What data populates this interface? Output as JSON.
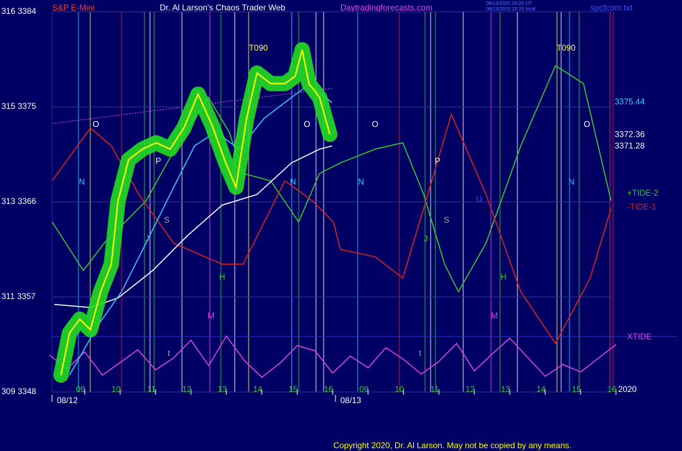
{
  "chart_data": {
    "type": "line",
    "header": {
      "symbol": "S&P E-Mini",
      "title": "Dr. Al Larson's Chaos Trader Web",
      "site": "Daytradingforecasts.com",
      "stamp1": "08/13/2020 20:20 UT",
      "stamp2": "08/13/2020 15:20 local",
      "file": "spcfcom.txt"
    },
    "copyright": "Copyright 2020, Dr. Al Larson. May not be copied by any means.",
    "year": "2020",
    "ylim": [
      3348,
      3384
    ],
    "yticks": [
      {
        "value": 3384,
        "label": "316  3384"
      },
      {
        "value": 3375,
        "label": "315  3375"
      },
      {
        "value": 3366,
        "label": "313  3366"
      },
      {
        "value": 3357,
        "label": "311  3357"
      },
      {
        "value": 3348,
        "label": "309  3348"
      }
    ],
    "xlim": [
      0,
      16
    ],
    "xticks": [
      {
        "value": 1,
        "label": "09"
      },
      {
        "value": 2,
        "label": "10"
      },
      {
        "value": 3,
        "label": "11"
      },
      {
        "value": 4,
        "label": "12"
      },
      {
        "value": 5,
        "label": "13"
      },
      {
        "value": 6,
        "label": "14"
      },
      {
        "value": 7,
        "label": "15"
      },
      {
        "value": 8,
        "label": "16"
      },
      {
        "value": 9,
        "label": "09"
      },
      {
        "value": 10,
        "label": "10"
      },
      {
        "value": 11,
        "label": "11"
      },
      {
        "value": 12,
        "label": "12"
      },
      {
        "value": 13,
        "label": "13"
      },
      {
        "value": 14,
        "label": "14"
      },
      {
        "value": 15,
        "label": "15"
      },
      {
        "value": 16,
        "label": "16"
      }
    ],
    "date_ticks": [
      {
        "value": 0,
        "label": "08/12"
      },
      {
        "value": 8,
        "label": "08/13"
      }
    ],
    "grid": true,
    "series": [
      {
        "name": "+TIDE-2",
        "color": "#33cc33",
        "x": [
          0.08,
          0.96,
          1.55,
          2.73,
          3.71,
          4.49,
          5.08,
          5.47,
          6.25,
          7.04,
          7.63,
          8.22,
          9.2,
          9.98,
          10.57,
          11.16,
          11.55,
          12.33,
          13.31,
          14.29,
          15.08,
          15.86
        ],
        "values": [
          3364.1,
          3359.5,
          3362.1,
          3366.1,
          3372.0,
          3375.9,
          3372.6,
          3368.7,
          3368.0,
          3364.1,
          3368.7,
          3369.7,
          3371.0,
          3371.6,
          3366.7,
          3360.1,
          3357.5,
          3362.1,
          3371.3,
          3378.9,
          3377.2,
          3366.1
        ]
      },
      {
        "name": "-TIDE-1",
        "color": "#dd2222",
        "x": [
          0.08,
          1.16,
          1.75,
          2.53,
          3.51,
          4.88,
          5.47,
          6.65,
          7.43,
          8.02,
          8.22,
          9.2,
          9.98,
          10.57,
          11.35,
          12.33,
          13.31,
          14.29,
          15.27,
          15.86
        ],
        "values": [
          3368.0,
          3373.0,
          3371.3,
          3366.7,
          3362.1,
          3360.1,
          3360.1,
          3368.0,
          3366.1,
          3364.1,
          3361.5,
          3360.8,
          3358.8,
          3365.4,
          3374.3,
          3366.7,
          3357.5,
          3352.6,
          3358.8,
          3365.4
        ]
      },
      {
        "name": "XTIDE",
        "color": "#dd44dd",
        "x": [
          0,
          0.5,
          1,
          1.5,
          2,
          2.5,
          3,
          3.5,
          4,
          4.5,
          5,
          5.5,
          6,
          6.5,
          7,
          7.5,
          8,
          8.5,
          9,
          9.5,
          10,
          10.5,
          11,
          11.5,
          12,
          12.5,
          13,
          13.5,
          14,
          14.5,
          15,
          15.5,
          16
        ],
        "values": [
          3351.5,
          3350.2,
          3351.8,
          3349.6,
          3350.8,
          3352.0,
          3350.1,
          3351.2,
          3352.9,
          3350.5,
          3353.3,
          3351.0,
          3349.4,
          3350.7,
          3352.4,
          3351.9,
          3349.8,
          3351.4,
          3350.3,
          3352.2,
          3351.1,
          3349.7,
          3350.9,
          3352.6,
          3350.0,
          3351.6,
          3353.1,
          3351.3,
          3349.5,
          3350.6,
          3349.9,
          3351.2,
          3352.5
        ]
      },
      {
        "color": "#ffffff",
        "last_label": 3371.28,
        "x": [
          0.14,
          1.16,
          1.94,
          2.92,
          3.9,
          4.88,
          5.86,
          6.84,
          7.63,
          7.98
        ],
        "values": [
          3356.3,
          3356.0,
          3356.9,
          3359.5,
          3362.8,
          3365.7,
          3366.7,
          3369.7,
          3371.0,
          3371.3
        ]
      },
      {
        "color": "#33ccff",
        "last_label": 3375.44,
        "x": [
          0.57,
          1.35,
          2.04,
          2.73,
          3.41,
          4.1,
          4.69,
          5.37,
          6.06,
          6.84,
          7.33,
          7.98
        ],
        "values": [
          3349.6,
          3354.2,
          3357.5,
          3362.1,
          3366.7,
          3371.3,
          3372.6,
          3371.0,
          3373.9,
          3375.9,
          3377.1,
          3375.4
        ]
      },
      {
        "color": "#ffff00",
        "band_color": "#22dd22",
        "last_label": 3372.36,
        "x": [
          0.33,
          0.57,
          0.86,
          1.16,
          1.45,
          1.75,
          1.94,
          2.24,
          2.63,
          3.02,
          3.41,
          3.8,
          4.2,
          4.59,
          4.98,
          5.27,
          5.57,
          5.86,
          6.25,
          6.65,
          6.94,
          7.14,
          7.33,
          7.63,
          7.92
        ],
        "values": [
          3349.6,
          3353.6,
          3354.9,
          3353.9,
          3357.5,
          3360.1,
          3366.1,
          3370.0,
          3371.0,
          3371.6,
          3371.0,
          3373.0,
          3376.2,
          3373.3,
          3369.7,
          3367.4,
          3373.9,
          3378.2,
          3377.2,
          3377.2,
          3377.9,
          3380.4,
          3377.2,
          3375.9,
          3372.4
        ]
      }
    ],
    "annotations": [
      {
        "text": "T090",
        "color": "#ffff66"
      },
      {
        "text": "T090",
        "color": "#ffff66"
      },
      {
        "text": "O",
        "color": "#ffffff"
      },
      {
        "text": "O",
        "color": "#ffffff"
      },
      {
        "text": "O",
        "color": "#ffffff"
      },
      {
        "text": "O",
        "color": "#ffffff"
      },
      {
        "text": "N",
        "color": "#33ccff"
      },
      {
        "text": "N",
        "color": "#33ccff"
      },
      {
        "text": "N",
        "color": "#33ccff"
      },
      {
        "text": "N",
        "color": "#33ccff"
      },
      {
        "text": "P",
        "color": "#ffffff"
      },
      {
        "text": "P",
        "color": "#ffffff"
      },
      {
        "text": "S",
        "color": "#aaaaaa"
      },
      {
        "text": "S",
        "color": "#aaaaaa"
      },
      {
        "text": "J",
        "color": "#33cc33"
      },
      {
        "text": "J",
        "color": "#33cc33"
      },
      {
        "text": "H",
        "color": "#33cc33"
      },
      {
        "text": "H",
        "color": "#33cc33"
      },
      {
        "text": "M",
        "color": "#dd44dd"
      },
      {
        "text": "M",
        "color": "#dd44dd"
      },
      {
        "text": "t",
        "color": "#aaaaaa"
      },
      {
        "text": "t",
        "color": "#aaaaaa"
      },
      {
        "text": "U",
        "color": "#3355ff"
      }
    ]
  }
}
